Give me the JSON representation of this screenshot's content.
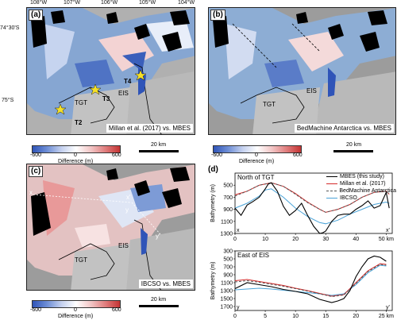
{
  "coords": {
    "top_lons": [
      "108°W",
      "107°W",
      "106°W",
      "105°W",
      "104°W"
    ],
    "lats": [
      "74°30'S",
      "75°S"
    ]
  },
  "panel_a": {
    "letter": "(a)",
    "caption": "Millan et al. (2017) vs. MBES",
    "labels": {
      "tgt": "TGT",
      "eis": "EIS",
      "t2": "T2",
      "t3": "T3",
      "t4": "T4"
    }
  },
  "panel_b": {
    "letter": "(b)",
    "caption": "BedMachine Antarctica vs. MBES",
    "labels": {
      "tgt": "TGT",
      "eis": "EIS"
    }
  },
  "panel_c": {
    "letter": "(c)",
    "caption": "IBCSO vs. MBES",
    "labels": {
      "tgt": "TGT",
      "eis": "EIS",
      "x": "x",
      "xp": "x'",
      "y": "y",
      "yp": "y'"
    }
  },
  "colorbar": {
    "title": "Difference (m)",
    "ticks": [
      "-600",
      "0",
      "600"
    ],
    "low_color": "#2f54b8",
    "high_color": "#c43434"
  },
  "scalebar": {
    "label": "20 km"
  },
  "panel_d": {
    "letter": "(d)",
    "legend": [
      "MBES (this study)",
      "Millan et al. (2017)",
      "BedMachine Antarctica",
      "IBCSO"
    ],
    "colors": {
      "mbes": "#000000",
      "millan": "#d42a2a",
      "bedmachine": "#555555",
      "ibcso": "#4aa3d8"
    }
  },
  "chart_data": [
    {
      "type": "line",
      "title": "North of TGT",
      "xlabel": "",
      "ylabel": "Bathymetry (m)",
      "xlim": [
        0,
        52
      ],
      "ylim": [
        1300,
        300
      ],
      "xticks": [
        "0",
        "10",
        "20",
        "30",
        "40",
        "50 km"
      ],
      "yticks": [
        "500",
        "700",
        "900",
        "1100",
        "1300"
      ],
      "start_label": "x",
      "end_label": "x'",
      "series": [
        {
          "name": "MBES (this study)",
          "x": [
            0,
            2,
            4,
            6,
            8,
            10,
            11,
            12,
            14,
            16,
            18,
            20,
            22,
            24,
            26,
            28,
            29,
            30,
            32,
            34,
            36,
            38,
            40,
            42,
            44,
            46,
            48,
            50,
            51
          ],
          "y": [
            880,
            1000,
            830,
            770,
            700,
            560,
            480,
            460,
            600,
            850,
            1000,
            920,
            800,
            1000,
            1180,
            1300,
            1290,
            1260,
            1100,
            1000,
            980,
            980,
            900,
            840,
            760,
            880,
            840,
            620,
            880
          ]
        },
        {
          "name": "Millan et al. (2017)",
          "x": [
            0,
            4,
            8,
            12,
            16,
            20,
            24,
            28,
            30,
            34,
            38,
            42,
            46,
            50,
            51
          ],
          "y": [
            660,
            600,
            500,
            460,
            520,
            640,
            780,
            900,
            950,
            900,
            820,
            700,
            620,
            600,
            650
          ]
        },
        {
          "name": "BedMachine Antarctica",
          "x": [
            0,
            4,
            8,
            12,
            16,
            20,
            24,
            28,
            30,
            34,
            38,
            42,
            46,
            50,
            51
          ],
          "y": [
            680,
            600,
            500,
            460,
            520,
            650,
            790,
            900,
            950,
            900,
            820,
            700,
            620,
            600,
            650
          ]
        },
        {
          "name": "IBCSO",
          "x": [
            0,
            4,
            8,
            10,
            12,
            16,
            20,
            24,
            28,
            30,
            34,
            38,
            42,
            46,
            50,
            51
          ],
          "y": [
            880,
            800,
            680,
            580,
            560,
            700,
            880,
            1020,
            1120,
            1140,
            1080,
            980,
            900,
            820,
            780,
            800
          ]
        }
      ]
    },
    {
      "type": "line",
      "title": "East of EIS",
      "xlabel": "",
      "ylabel": "Bathymetry (m)",
      "xlim": [
        0,
        26
      ],
      "ylim": [
        1800,
        300
      ],
      "xticks": [
        "0",
        "5",
        "10",
        "15",
        "20",
        "25 km"
      ],
      "yticks": [
        "300",
        "500",
        "700",
        "900",
        "1100",
        "1300",
        "1500",
        "1700"
      ],
      "start_label": "y",
      "end_label": "y'",
      "series": [
        {
          "name": "MBES (this study)",
          "x": [
            0,
            2,
            4,
            6,
            8,
            10,
            12,
            14,
            16,
            17,
            18,
            19,
            20,
            21,
            22,
            23,
            24,
            25
          ],
          "y": [
            1250,
            1100,
            1150,
            1200,
            1270,
            1320,
            1380,
            1520,
            1600,
            1560,
            1500,
            1300,
            950,
            700,
            500,
            430,
            460,
            560
          ]
        },
        {
          "name": "Millan et al. (2017)",
          "x": [
            0,
            2,
            4,
            6,
            8,
            10,
            12,
            14,
            16,
            18,
            20,
            22,
            24,
            25
          ],
          "y": [
            1050,
            1020,
            1070,
            1120,
            1170,
            1240,
            1300,
            1370,
            1440,
            1400,
            1100,
            800,
            620,
            640
          ]
        },
        {
          "name": "BedMachine Antarctica",
          "x": [
            0,
            2,
            4,
            6,
            8,
            10,
            12,
            14,
            16,
            18,
            20,
            22,
            24,
            25
          ],
          "y": [
            1080,
            1050,
            1090,
            1140,
            1190,
            1250,
            1310,
            1380,
            1450,
            1410,
            1120,
            820,
            640,
            660
          ]
        },
        {
          "name": "IBCSO",
          "x": [
            0,
            2,
            4,
            6,
            8,
            10,
            12,
            14,
            16,
            18,
            20,
            22,
            24,
            25
          ],
          "y": [
            1280,
            1260,
            1240,
            1260,
            1290,
            1320,
            1350,
            1380,
            1420,
            1380,
            1150,
            850,
            660,
            680
          ]
        }
      ]
    }
  ]
}
